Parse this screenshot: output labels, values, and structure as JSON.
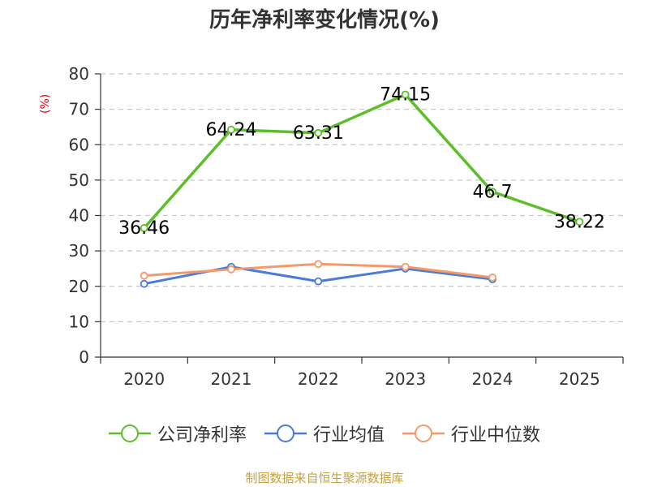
{
  "chart_data": {
    "type": "line",
    "title": "历年净利率变化情况(%)",
    "ylabel": "(%)",
    "ylim": [
      0,
      80
    ],
    "yticks": [
      0,
      10,
      20,
      30,
      40,
      50,
      60,
      70,
      80
    ],
    "categories": [
      "2020",
      "2021",
      "2022",
      "2023",
      "2024",
      "2025"
    ],
    "grid": true,
    "legend_position": "bottom",
    "series": [
      {
        "name": "公司净利率",
        "color": "#5cbf2a",
        "values": [
          36.46,
          64.24,
          63.31,
          74.15,
          46.7,
          38.22
        ],
        "labels": [
          "36.46",
          "64.24",
          "63.31",
          "74.15",
          "46.7",
          "38.22"
        ]
      },
      {
        "name": "行业均值",
        "color": "#4a7bd8",
        "values": [
          20.7,
          25.5,
          21.4,
          25.0,
          22.0,
          null
        ]
      },
      {
        "name": "行业中位数",
        "color": "#f39a6b",
        "values": [
          23.0,
          24.8,
          26.3,
          25.5,
          22.5,
          null
        ]
      }
    ]
  },
  "source_text": "制图数据来自恒生聚源数据库"
}
